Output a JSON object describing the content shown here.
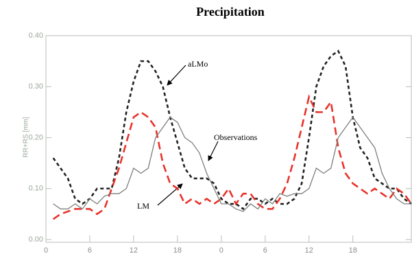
{
  "chart_data": {
    "type": "line",
    "title": "Precipitation",
    "ylabel": "RR+RS [mm]",
    "x": [
      1,
      2,
      3,
      4,
      5,
      6,
      7,
      8,
      9,
      10,
      11,
      12,
      13,
      14,
      15,
      16,
      17,
      18,
      19,
      20,
      21,
      22,
      23,
      24,
      25,
      26,
      27,
      28,
      29,
      30,
      31,
      32,
      33,
      34,
      35,
      36,
      37,
      38,
      39,
      40,
      41,
      42,
      43,
      44,
      45,
      46,
      47,
      48,
      49,
      50
    ],
    "xlim": [
      0,
      50
    ],
    "ylim": [
      0,
      0.4
    ],
    "xticks": [
      0,
      6,
      12,
      18,
      {
        "value": 24,
        "label": "0"
      },
      {
        "value": 30,
        "label": "6"
      },
      {
        "value": 36,
        "label": "12"
      },
      {
        "value": 42,
        "label": "18"
      }
    ],
    "yticks": [
      {
        "value": 0,
        "label": "0.00"
      },
      {
        "value": 0.1,
        "label": "0.10"
      },
      {
        "value": 0.2,
        "label": "0.20"
      },
      {
        "value": 0.3,
        "label": "0.30"
      },
      {
        "value": 0.4,
        "label": "0.40"
      }
    ],
    "series": [
      {
        "name": "aLMo",
        "color": "#222222",
        "dash": "5,4",
        "width": 2.6,
        "values": [
          0.16,
          0.14,
          0.12,
          0.08,
          0.07,
          0.08,
          0.1,
          0.1,
          0.1,
          0.16,
          0.25,
          0.31,
          0.35,
          0.35,
          0.33,
          0.3,
          0.24,
          0.19,
          0.14,
          0.12,
          0.12,
          0.12,
          0.11,
          0.08,
          0.07,
          0.07,
          0.06,
          0.08,
          0.08,
          0.07,
          0.08,
          0.07,
          0.07,
          0.08,
          0.11,
          0.2,
          0.3,
          0.34,
          0.36,
          0.37,
          0.34,
          0.24,
          0.18,
          0.16,
          0.12,
          0.11,
          0.1,
          0.1,
          0.08,
          0.07
        ]
      },
      {
        "name": "LM",
        "color": "#e8322a",
        "dash": "11,6",
        "width": 2.6,
        "values": [
          0.04,
          0.05,
          0.055,
          0.06,
          0.06,
          0.06,
          0.05,
          0.06,
          0.1,
          0.14,
          0.19,
          0.24,
          0.25,
          0.24,
          0.22,
          0.15,
          0.11,
          0.1,
          0.07,
          0.08,
          0.07,
          0.08,
          0.07,
          0.08,
          0.1,
          0.07,
          0.09,
          0.09,
          0.07,
          0.06,
          0.06,
          0.08,
          0.11,
          0.16,
          0.22,
          0.28,
          0.25,
          0.25,
          0.27,
          0.18,
          0.13,
          0.11,
          0.1,
          0.09,
          0.1,
          0.09,
          0.08,
          0.1,
          0.09,
          0.07
        ]
      },
      {
        "name": "Observations",
        "color": "#7a7f7a",
        "dash": "none",
        "width": 1.3,
        "values": [
          0.07,
          0.06,
          0.06,
          0.07,
          0.06,
          0.08,
          0.07,
          0.085,
          0.09,
          0.09,
          0.1,
          0.14,
          0.13,
          0.14,
          0.2,
          0.22,
          0.24,
          0.23,
          0.2,
          0.19,
          0.17,
          0.13,
          0.1,
          0.07,
          0.07,
          0.06,
          0.055,
          0.07,
          0.06,
          0.08,
          0.07,
          0.09,
          0.085,
          0.09,
          0.09,
          0.1,
          0.14,
          0.13,
          0.14,
          0.2,
          0.22,
          0.24,
          0.22,
          0.2,
          0.18,
          0.13,
          0.1,
          0.08,
          0.07,
          0.07
        ]
      }
    ],
    "annotations": [
      {
        "text": "aLMo"
      },
      {
        "text": "Observations"
      },
      {
        "text": "LM"
      }
    ]
  }
}
